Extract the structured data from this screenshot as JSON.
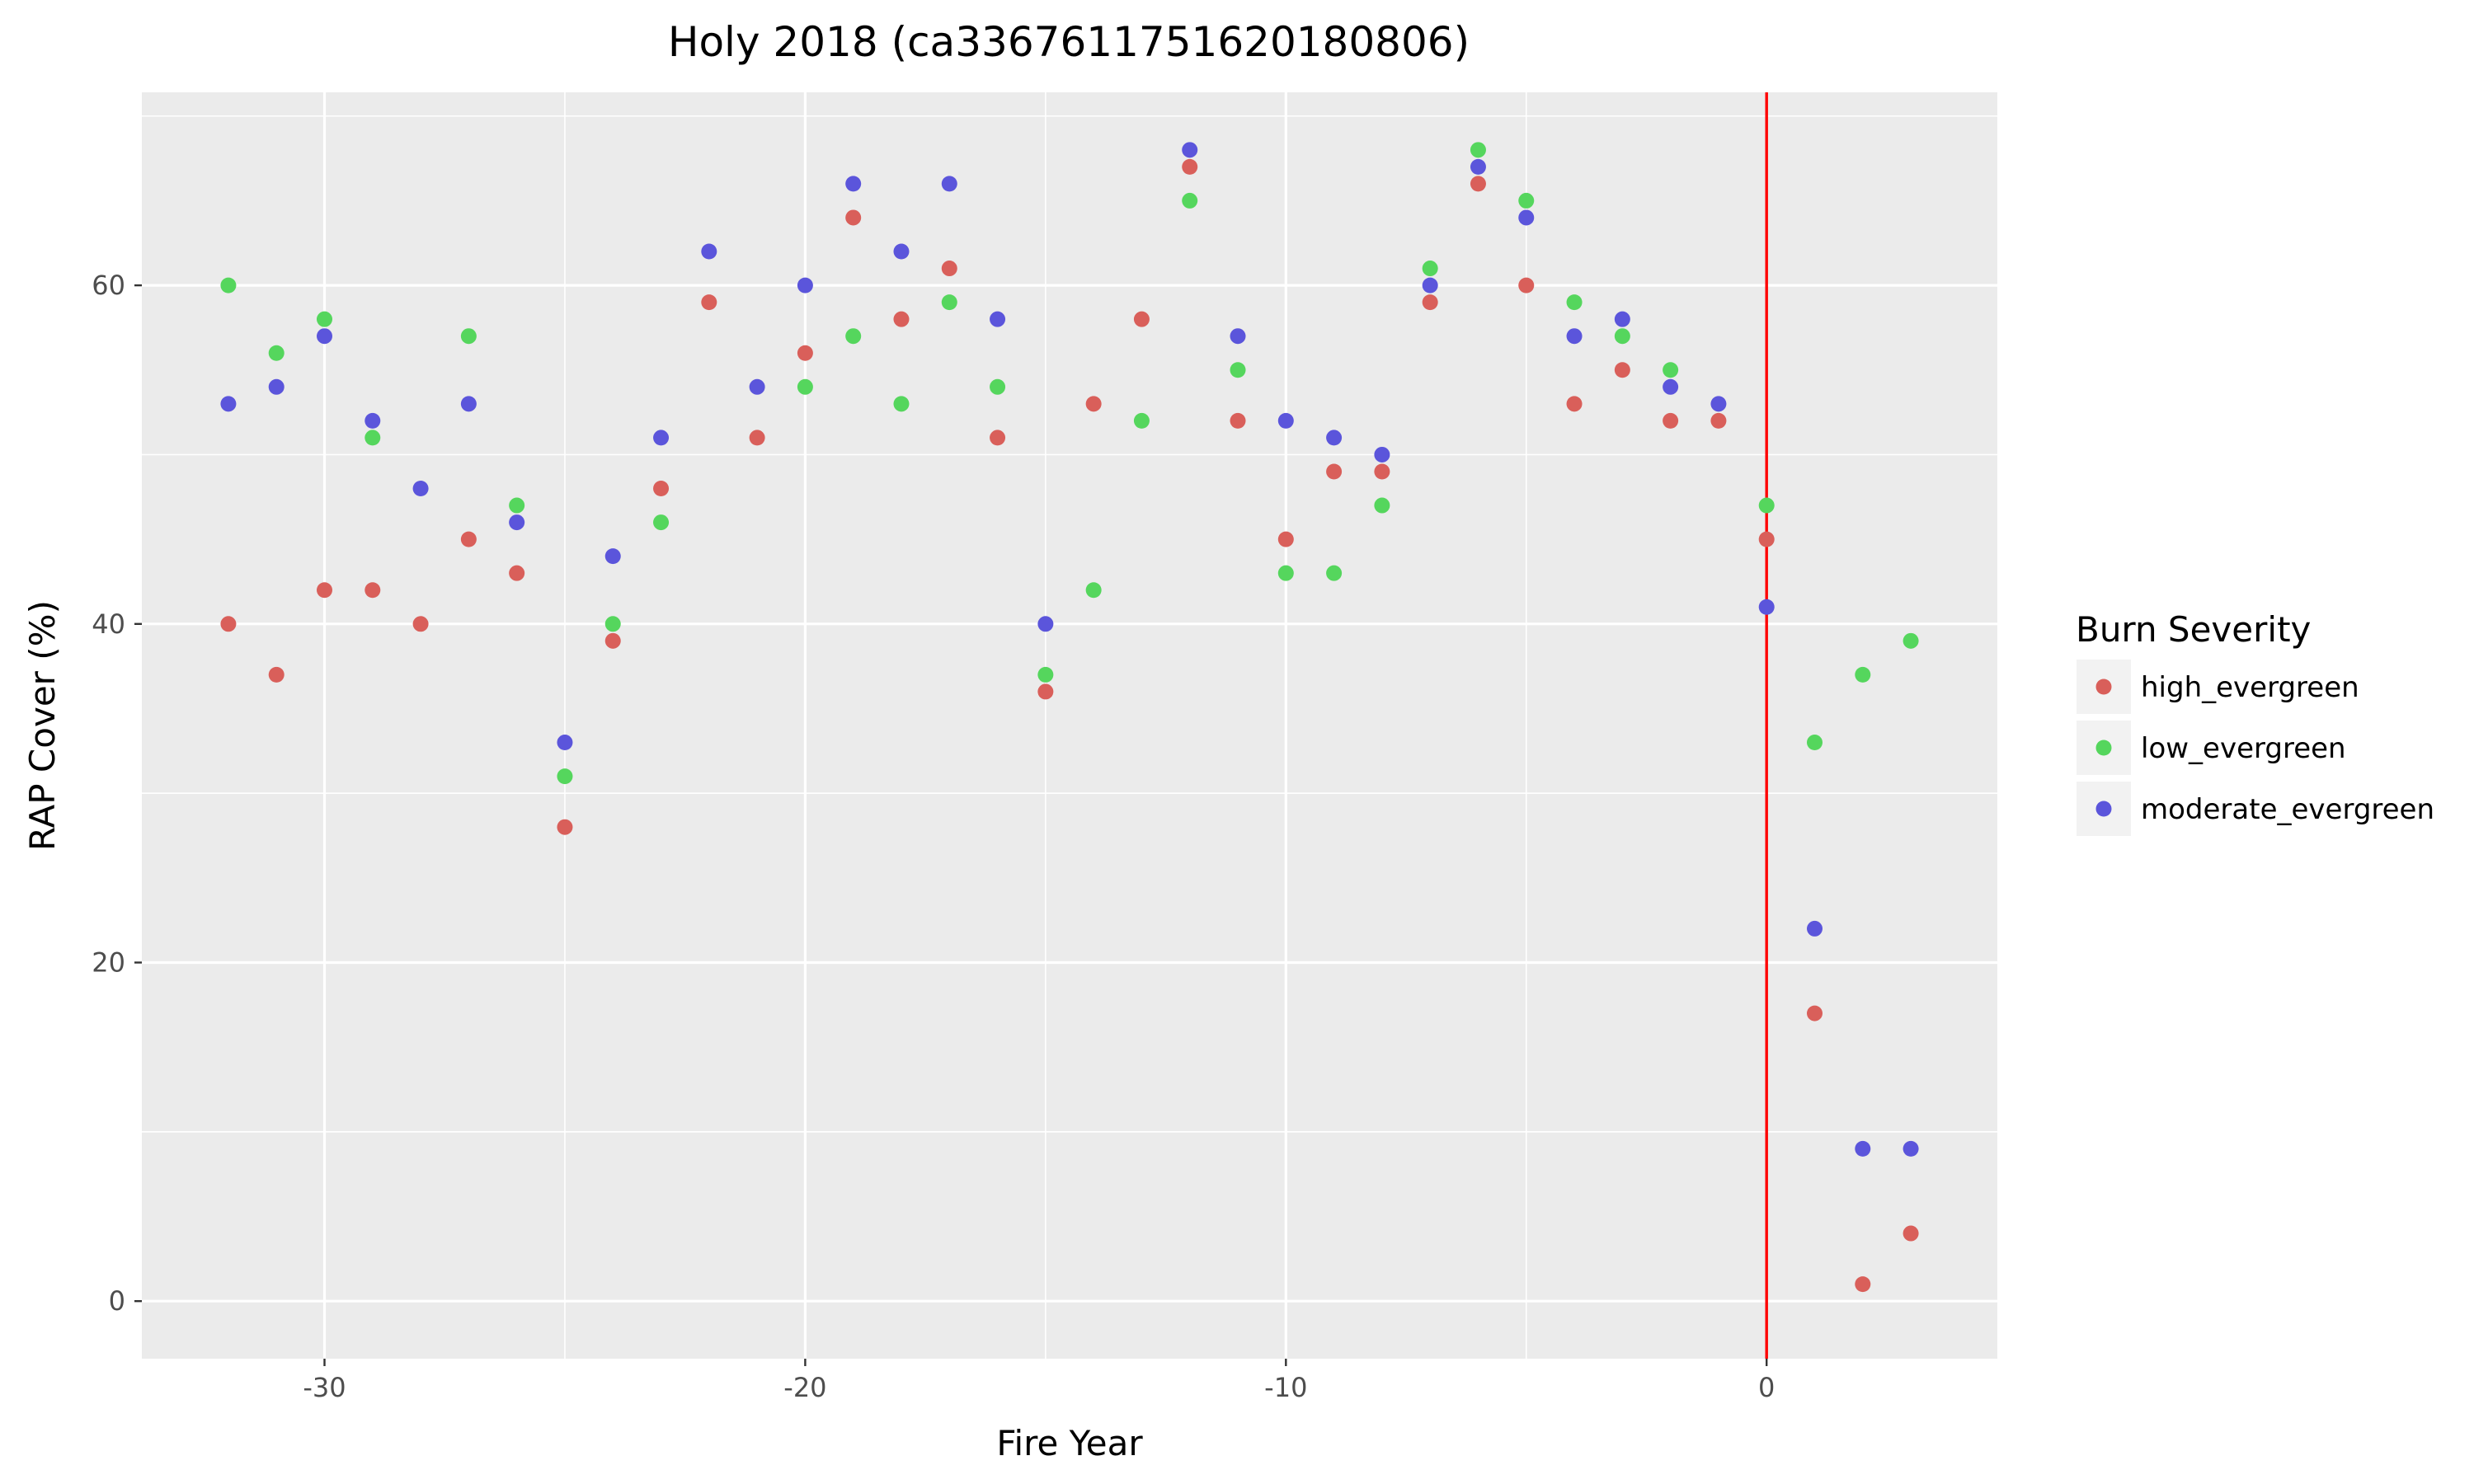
{
  "chart_data": {
    "type": "scatter",
    "title": "Holy 2018 (ca3367611751620180806)",
    "xlabel": "Fire Year",
    "ylabel": "RAP Cover (%)",
    "xlim": [
      -33.8,
      4.8
    ],
    "ylim": [
      -3.4,
      71.4
    ],
    "x_ticks": [
      -30,
      -20,
      -10,
      0
    ],
    "x_minor_ticks": [
      -25,
      -15,
      -5
    ],
    "y_ticks": [
      0,
      20,
      40,
      60
    ],
    "y_minor_ticks": [
      10,
      30,
      50,
      70
    ],
    "grid": true,
    "vline": {
      "x": 0,
      "color": "#ff0000"
    },
    "legend": {
      "title": "Burn Severity",
      "position": "right"
    },
    "series": [
      {
        "name": "high_evergreen",
        "color": "#d95f5a",
        "points": [
          [
            -32,
            40
          ],
          [
            -31,
            37
          ],
          [
            -30,
            42
          ],
          [
            -29,
            42
          ],
          [
            -28,
            40
          ],
          [
            -27,
            45
          ],
          [
            -26,
            43
          ],
          [
            -25,
            28
          ],
          [
            -24,
            39
          ],
          [
            -23,
            48
          ],
          [
            -22,
            59
          ],
          [
            -21,
            51
          ],
          [
            -20,
            56
          ],
          [
            -19,
            64
          ],
          [
            -18,
            58
          ],
          [
            -17,
            61
          ],
          [
            -16,
            51
          ],
          [
            -15,
            36
          ],
          [
            -14,
            53
          ],
          [
            -13,
            58
          ],
          [
            -12,
            67
          ],
          [
            -11,
            52
          ],
          [
            -10,
            45
          ],
          [
            -9,
            49
          ],
          [
            -8,
            49
          ],
          [
            -7,
            59
          ],
          [
            -6,
            66
          ],
          [
            -5,
            60
          ],
          [
            -4,
            53
          ],
          [
            -3,
            55
          ],
          [
            -2,
            52
          ],
          [
            -1,
            52
          ],
          [
            0,
            45
          ],
          [
            1,
            17
          ],
          [
            2,
            1
          ],
          [
            3,
            4
          ]
        ]
      },
      {
        "name": "low_evergreen",
        "color": "#55d65d",
        "points": [
          [
            -32,
            60
          ],
          [
            -31,
            56
          ],
          [
            -30,
            58
          ],
          [
            -29,
            51
          ],
          [
            -27,
            57
          ],
          [
            -26,
            47
          ],
          [
            -25,
            31
          ],
          [
            -24,
            40
          ],
          [
            -23,
            46
          ],
          [
            -20,
            54
          ],
          [
            -19,
            57
          ],
          [
            -18,
            53
          ],
          [
            -17,
            59
          ],
          [
            -16,
            54
          ],
          [
            -15,
            37
          ],
          [
            -14,
            42
          ],
          [
            -13,
            52
          ],
          [
            -12,
            65
          ],
          [
            -11,
            55
          ],
          [
            -10,
            43
          ],
          [
            -9,
            43
          ],
          [
            -8,
            47
          ],
          [
            -7,
            61
          ],
          [
            -6,
            68
          ],
          [
            -5,
            65
          ],
          [
            -4,
            59
          ],
          [
            -3,
            57
          ],
          [
            -2,
            55
          ],
          [
            0,
            47
          ],
          [
            1,
            33
          ],
          [
            2,
            37
          ],
          [
            3,
            39
          ]
        ]
      },
      {
        "name": "moderate_evergreen",
        "color": "#5b55db",
        "points": [
          [
            -32,
            53
          ],
          [
            -31,
            54
          ],
          [
            -30,
            57
          ],
          [
            -29,
            52
          ],
          [
            -28,
            48
          ],
          [
            -27,
            53
          ],
          [
            -26,
            46
          ],
          [
            -25,
            33
          ],
          [
            -24,
            44
          ],
          [
            -23,
            51
          ],
          [
            -22,
            62
          ],
          [
            -21,
            54
          ],
          [
            -20,
            60
          ],
          [
            -19,
            66
          ],
          [
            -18,
            62
          ],
          [
            -17,
            66
          ],
          [
            -16,
            58
          ],
          [
            -15,
            40
          ],
          [
            -12,
            68
          ],
          [
            -11,
            57
          ],
          [
            -10,
            52
          ],
          [
            -9,
            51
          ],
          [
            -8,
            50
          ],
          [
            -7,
            60
          ],
          [
            -6,
            67
          ],
          [
            -5,
            64
          ],
          [
            -4,
            57
          ],
          [
            -3,
            58
          ],
          [
            -2,
            54
          ],
          [
            -1,
            53
          ],
          [
            0,
            41
          ],
          [
            1,
            22
          ],
          [
            2,
            9
          ],
          [
            3,
            9
          ]
        ]
      }
    ]
  }
}
